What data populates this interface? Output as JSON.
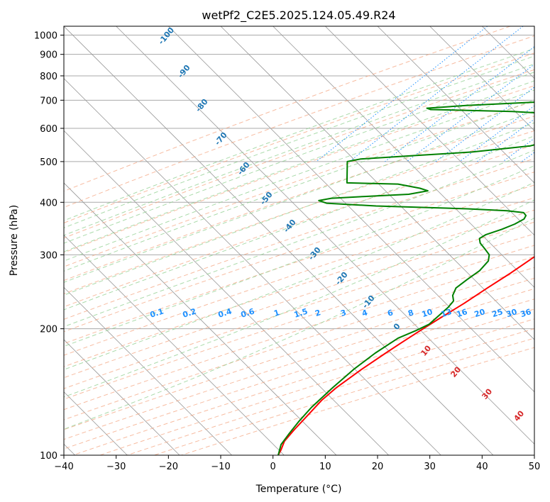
{
  "chart_data": {
    "type": "line",
    "title": "wetPf2_C2E5.2025.124.05.49.R24",
    "xlabel": "Temperature (°C)",
    "ylabel": "Pressure (hPa)",
    "xlim": [
      -40,
      50
    ],
    "ylim": [
      1050,
      100
    ],
    "yscale": "log",
    "grid": true,
    "x_ticks": [
      -40,
      -30,
      -20,
      -10,
      0,
      10,
      20,
      30,
      40,
      50
    ],
    "y_ticks": [
      100,
      200,
      300,
      400,
      500,
      600,
      700,
      800,
      900,
      1000
    ],
    "x_tick_labels": [
      "−40",
      "−30",
      "−20",
      "−10",
      "0",
      "10",
      "20",
      "30",
      "40",
      "50"
    ],
    "y_tick_labels": [
      "100",
      "200",
      "300",
      "400",
      "500",
      "600",
      "700",
      "800",
      "900",
      "1000"
    ],
    "dry_adiabat_labels": [
      "-100",
      "-90",
      "-80",
      "-70",
      "-60",
      "-50",
      "-40",
      "-30",
      "-20",
      "-10",
      "0"
    ],
    "moist_adiabat_labels": [
      "10",
      "20",
      "30",
      "40"
    ],
    "mixing_ratio_labels": [
      "0.1",
      "0.2",
      "0.4",
      "0.6",
      "1",
      "1.5",
      "2",
      "3",
      "4",
      "6",
      "8",
      "10",
      "13",
      "16",
      "20",
      "25",
      "30",
      "36"
    ],
    "colors": {
      "temperature": "#ff0000",
      "dewpoint": "#008000",
      "dry_adiabat": "#f4a582",
      "moist_adiabat": "#8fcf8f",
      "mixing_ratio": "#1e90ff",
      "isotherm": "#999999",
      "isobar": "#aaaaaa"
    },
    "series": [
      {
        "key": "temperature",
        "points": [
          [
            29.5,
            990
          ],
          [
            27.5,
            960
          ],
          [
            25.5,
            920
          ],
          [
            24.5,
            880
          ],
          [
            24.3,
            850
          ],
          [
            24.0,
            820
          ],
          [
            24.3,
            790
          ],
          [
            24.5,
            760
          ],
          [
            23.8,
            740
          ],
          [
            23.6,
            720
          ],
          [
            24.0,
            700
          ],
          [
            24.5,
            680
          ],
          [
            25.5,
            660
          ],
          [
            26.0,
            640
          ],
          [
            25.3,
            620
          ],
          [
            24.5,
            605
          ],
          [
            23.5,
            590
          ],
          [
            22.5,
            570
          ],
          [
            22.3,
            550
          ],
          [
            21.8,
            530
          ],
          [
            22.2,
            510
          ],
          [
            21.8,
            490
          ],
          [
            20.0,
            470
          ],
          [
            18.5,
            450
          ],
          [
            17.2,
            430
          ],
          [
            17.0,
            415
          ],
          [
            18.0,
            400
          ],
          [
            17.5,
            390
          ],
          [
            17.0,
            385
          ],
          [
            16.6,
            375
          ],
          [
            15.8,
            365
          ],
          [
            15.2,
            355
          ],
          [
            14.5,
            345
          ],
          [
            14.0,
            335
          ],
          [
            13.2,
            320
          ],
          [
            12.2,
            300
          ],
          [
            10.5,
            270
          ],
          [
            9.0,
            250
          ],
          [
            7.5,
            230
          ],
          [
            5.5,
            210
          ],
          [
            4.0,
            195
          ],
          [
            3.0,
            185
          ],
          [
            2.0,
            175
          ],
          [
            0.5,
            160
          ],
          [
            -0.8,
            145
          ],
          [
            -1.2,
            135
          ],
          [
            -1.0,
            125
          ],
          [
            -0.8,
            115
          ],
          [
            -0.5,
            108
          ],
          [
            0.5,
            103
          ],
          [
            1.0,
            100
          ]
        ]
      },
      {
        "key": "dewpoint",
        "points": [
          [
            22.0,
            990
          ],
          [
            22.3,
            970
          ],
          [
            21.8,
            950
          ],
          [
            21.0,
            935
          ],
          [
            20.5,
            920
          ],
          [
            18.5,
            895
          ],
          [
            17.5,
            870
          ],
          [
            16.5,
            845
          ],
          [
            15.8,
            825
          ],
          [
            16.2,
            810
          ],
          [
            17.5,
            795
          ],
          [
            18.5,
            780
          ],
          [
            17.0,
            755
          ],
          [
            12.0,
            735
          ],
          [
            2.0,
            715
          ],
          [
            -15.0,
            695
          ],
          [
            -30.0,
            680
          ],
          [
            -37.0,
            670
          ],
          [
            -36.0,
            665
          ],
          [
            -20.0,
            658
          ],
          [
            -12.0,
            650
          ],
          [
            -7.0,
            638
          ],
          [
            -4.5,
            615
          ],
          [
            -4.5,
            595
          ],
          [
            -5.0,
            580
          ],
          [
            -6.5,
            565
          ],
          [
            -8.0,
            555
          ],
          [
            -10.0,
            545
          ],
          [
            -20.0,
            527
          ],
          [
            -30.0,
            517
          ],
          [
            -40.0,
            507
          ],
          [
            -42.0,
            500
          ],
          [
            -38.0,
            445
          ],
          [
            -28.0,
            442
          ],
          [
            -23.0,
            432
          ],
          [
            -21.0,
            426
          ],
          [
            -24.0,
            418
          ],
          [
            -32.0,
            413
          ],
          [
            -38.0,
            409
          ],
          [
            -40.0,
            404
          ],
          [
            -38.0,
            398
          ],
          [
            -28.0,
            392
          ],
          [
            -10.0,
            386
          ],
          [
            -2.0,
            382
          ],
          [
            1.5,
            378
          ],
          [
            2.5,
            372
          ],
          [
            2.8,
            365
          ],
          [
            2.0,
            355
          ],
          [
            0.5,
            345
          ],
          [
            -1.5,
            335
          ],
          [
            -2.0,
            328
          ],
          [
            -1.0,
            320
          ],
          [
            1.0,
            310
          ],
          [
            3.0,
            300
          ],
          [
            4.0,
            290
          ],
          [
            4.2,
            275
          ],
          [
            3.5,
            262
          ],
          [
            3.0,
            250
          ],
          [
            3.8,
            240
          ],
          [
            5.0,
            233
          ],
          [
            5.2,
            225
          ],
          [
            5.0,
            215
          ],
          [
            4.8,
            205
          ],
          [
            3.5,
            198
          ],
          [
            1.5,
            190
          ],
          [
            0.0,
            175
          ],
          [
            -1.0,
            160
          ],
          [
            -1.5,
            145
          ],
          [
            -1.8,
            130
          ],
          [
            -1.5,
            120
          ],
          [
            -1.0,
            112
          ],
          [
            -0.5,
            106
          ],
          [
            1.0,
            100
          ]
        ]
      }
    ]
  }
}
